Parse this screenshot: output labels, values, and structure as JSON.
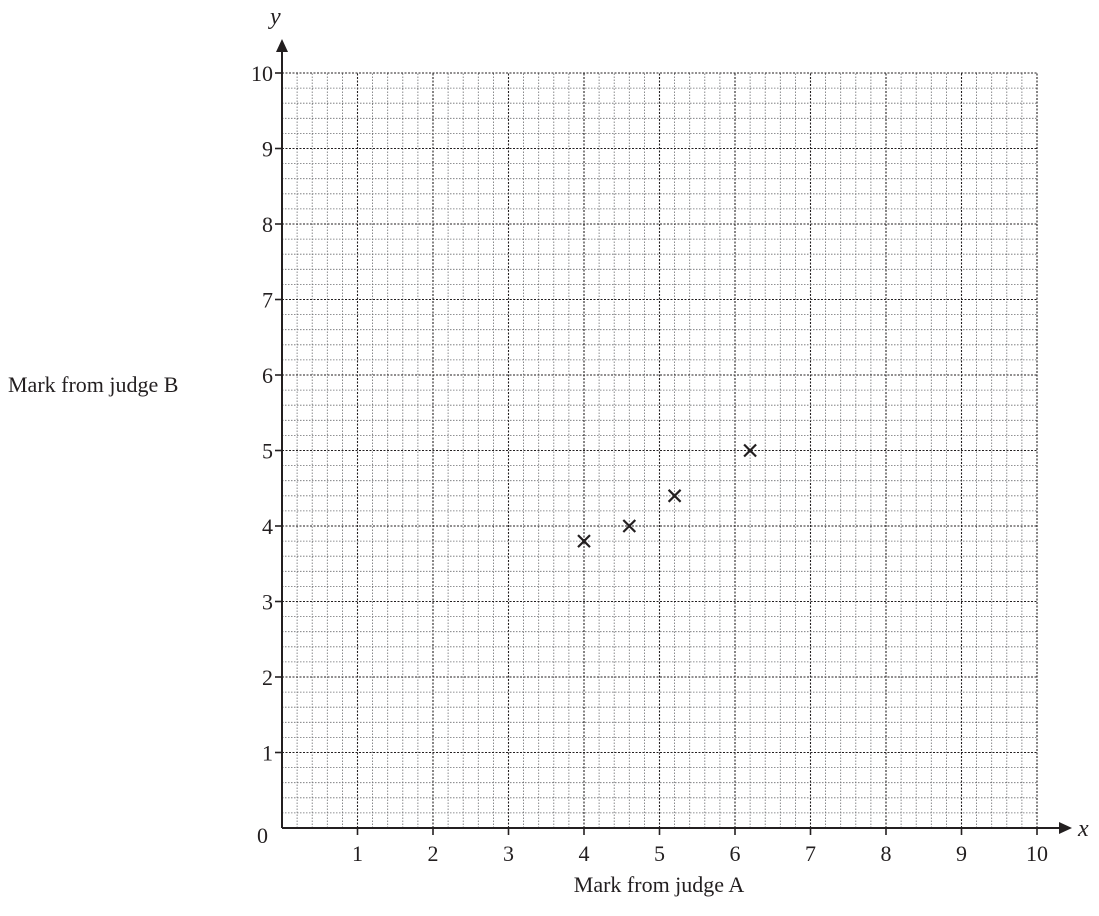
{
  "chart_data": {
    "type": "scatter",
    "title": "",
    "xlabel": "Mark from judge A",
    "ylabel": "Mark from judge B",
    "x_axis_symbol": "x",
    "y_axis_symbol": "y",
    "origin_label": "0",
    "xlim": [
      0,
      10
    ],
    "ylim": [
      0,
      10
    ],
    "x_ticks": [
      "1",
      "2",
      "3",
      "4",
      "5",
      "6",
      "7",
      "8",
      "9",
      "10"
    ],
    "y_ticks": [
      "1",
      "2",
      "3",
      "4",
      "5",
      "6",
      "7",
      "8",
      "9",
      "10"
    ],
    "grid": true,
    "grid_minor_per_unit": 5,
    "marker": "x",
    "points": [
      {
        "x": 4.0,
        "y": 3.8
      },
      {
        "x": 4.6,
        "y": 4.0
      },
      {
        "x": 5.2,
        "y": 4.4
      },
      {
        "x": 6.2,
        "y": 5.0
      }
    ],
    "colors": {
      "ink": "#231f20",
      "grid_major": "#231f20",
      "grid_minor": "#6d6e71"
    }
  }
}
